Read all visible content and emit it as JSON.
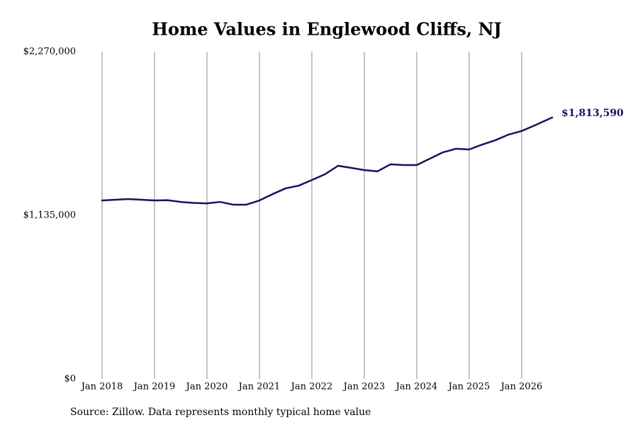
{
  "chart_data": {
    "type": "line",
    "title": "Home Values in Englewood Cliffs, NJ",
    "source": "Source: Zillow. Data represents monthly typical home value",
    "x": [
      "2018-01",
      "2018-04",
      "2018-07",
      "2018-10",
      "2019-01",
      "2019-04",
      "2019-07",
      "2019-10",
      "2020-01",
      "2020-04",
      "2020-07",
      "2020-10",
      "2021-01",
      "2021-04",
      "2021-07",
      "2021-10",
      "2022-01",
      "2022-04",
      "2022-07",
      "2022-10",
      "2023-01",
      "2023-04",
      "2023-07",
      "2023-10",
      "2024-01",
      "2024-04",
      "2024-07",
      "2024-10",
      "2025-01",
      "2025-04",
      "2025-07",
      "2025-10",
      "2026-01",
      "2026-04",
      "2026-08"
    ],
    "series": [
      {
        "name": "Home Values",
        "color": "#14145e",
        "values": [
          1238000,
          1243000,
          1248000,
          1243000,
          1238000,
          1240000,
          1228000,
          1221000,
          1218000,
          1228000,
          1209000,
          1209000,
          1238000,
          1282000,
          1322000,
          1341000,
          1380000,
          1420000,
          1479000,
          1464000,
          1449000,
          1440000,
          1489000,
          1484000,
          1484000,
          1528000,
          1572000,
          1597000,
          1592000,
          1626000,
          1656000,
          1695000,
          1720000,
          1759000,
          1813590
        ],
        "last_value_label": "$1,813,590"
      }
    ],
    "xlim": [
      "2018-01",
      "2026-08"
    ],
    "xticks": [
      {
        "value": "2018-01",
        "label": "Jan 2018"
      },
      {
        "value": "2019-01",
        "label": "Jan 2019"
      },
      {
        "value": "2020-01",
        "label": "Jan 2020"
      },
      {
        "value": "2021-01",
        "label": "Jan 2021"
      },
      {
        "value": "2022-01",
        "label": "Jan 2022"
      },
      {
        "value": "2023-01",
        "label": "Jan 2023"
      },
      {
        "value": "2024-01",
        "label": "Jan 2024"
      },
      {
        "value": "2025-01",
        "label": "Jan 2025"
      },
      {
        "value": "2026-01",
        "label": "Jan 2026"
      }
    ],
    "ylim": [
      0,
      2270000
    ],
    "yticks": [
      {
        "value": 0,
        "label": "$0"
      },
      {
        "value": 1135000,
        "label": "$1,135,000"
      },
      {
        "value": 2270000,
        "label": "$2,270,000"
      }
    ],
    "x_grid": true,
    "grid_color": "#8c8c8c"
  }
}
